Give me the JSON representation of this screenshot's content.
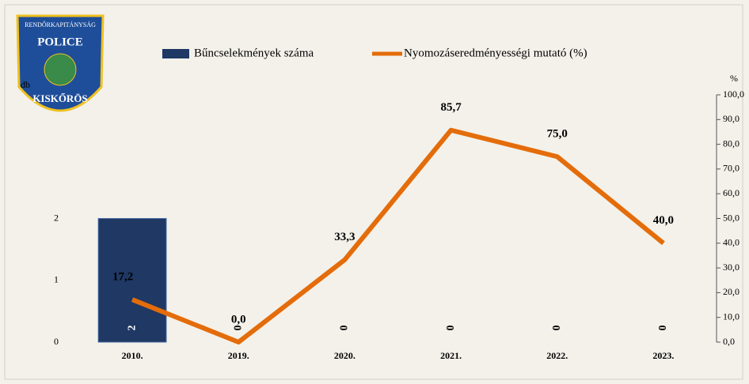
{
  "logo": {
    "ring_text": "RENDŐRKAPITÁNYSÁG",
    "badge_text": "POLICE",
    "city": "KISKŐRÖS"
  },
  "chart_data": {
    "type": "bar-line",
    "ylabel": "db",
    "y2label": "%",
    "categories": [
      "2010.",
      "2019.",
      "2020.",
      "2021.",
      "2022.",
      "2023."
    ],
    "series": [
      {
        "name": "Bűncselekmények száma",
        "type": "bar",
        "color": "#1f3864",
        "values": [
          2,
          0,
          0,
          0,
          0,
          0
        ]
      },
      {
        "name": "Nyomozáseredményességi mutató (%)",
        "type": "line",
        "axis": "y2",
        "color": "#e46c0a",
        "values": [
          17.2,
          0,
          33.3,
          85.7,
          75,
          40
        ],
        "value_labels": [
          "17,2",
          "0,0",
          "33,3",
          "85,7",
          "75,0",
          "40,0"
        ]
      }
    ],
    "ylim": [
      0,
      4
    ],
    "yticks": [
      0,
      1,
      2
    ],
    "y2lim": [
      0,
      100
    ],
    "y2ticks": [
      {
        "value": 0,
        "label": "0,0"
      },
      {
        "value": 10,
        "label": "10,0"
      },
      {
        "value": 20,
        "label": "20,0"
      },
      {
        "value": 30,
        "label": "30,0"
      },
      {
        "value": 40,
        "label": "40,0"
      },
      {
        "value": 50,
        "label": "50,0"
      },
      {
        "value": 60,
        "label": "60,0"
      },
      {
        "value": 70,
        "label": "70,0"
      },
      {
        "value": 80,
        "label": "80,0"
      },
      {
        "value": 90,
        "label": "90,0"
      },
      {
        "value": 100,
        "label": "100,0"
      }
    ]
  }
}
